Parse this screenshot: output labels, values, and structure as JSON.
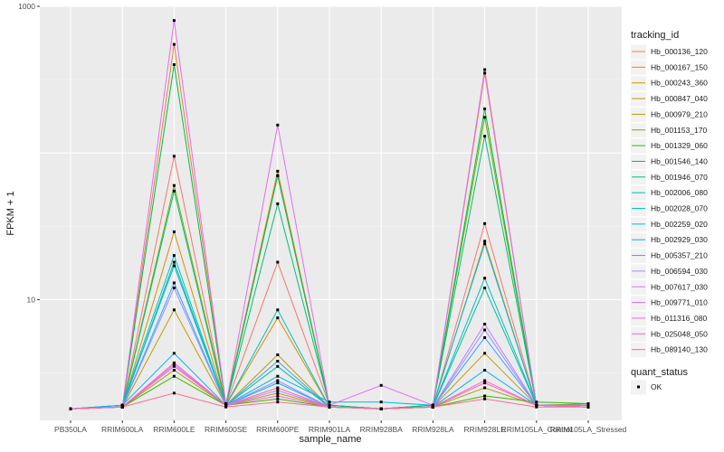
{
  "chart_data": {
    "type": "line",
    "xlabel": "sample_name",
    "ylabel": "FPKM + 1",
    "y_scale": "log10",
    "ylim": [
      1.5,
      1000
    ],
    "y_ticks": [
      10,
      1000
    ],
    "y_tick_labels": [
      "10",
      "1000"
    ],
    "grid": true,
    "legend_position": "right",
    "categories": [
      "PB350LA",
      "RRIM600LA",
      "RRIM600LE",
      "RRIM600SE",
      "RRIM600PE",
      "RRIM901LA",
      "RRIM928BA",
      "RRIM928LA",
      "RRIM928LE",
      "RRIM105LA_Control",
      "RRIM105LA_Stressed"
    ],
    "color_legend_title": "tracking_id",
    "shape_legend": {
      "title": "quant_status",
      "entries": [
        "OK"
      ]
    },
    "series": [
      {
        "name": "Hb_000136_120",
        "color": "#F8766D",
        "values": [
          1.8,
          1.85,
          95,
          1.9,
          18,
          1.9,
          1.8,
          1.85,
          33,
          1.9,
          1.9
        ]
      },
      {
        "name": "Hb_000167_150",
        "color": "#EA8331",
        "values": [
          1.8,
          1.85,
          550,
          1.95,
          75,
          1.9,
          1.8,
          1.9,
          350,
          1.9,
          1.9
        ]
      },
      {
        "name": "Hb_000243_360",
        "color": "#D89000",
        "values": [
          1.8,
          1.85,
          29,
          1.9,
          7.5,
          1.85,
          1.8,
          1.85,
          25,
          1.9,
          1.9
        ]
      },
      {
        "name": "Hb_000847_040",
        "color": "#C09B00",
        "values": [
          1.8,
          1.85,
          8.5,
          1.9,
          4.2,
          1.85,
          1.8,
          1.85,
          4.3,
          1.9,
          1.85
        ]
      },
      {
        "name": "Hb_000979_210",
        "color": "#A3A500",
        "values": [
          1.8,
          1.85,
          3.3,
          1.9,
          2.3,
          1.85,
          1.8,
          1.85,
          2.5,
          1.9,
          1.85
        ]
      },
      {
        "name": "Hb_001153_170",
        "color": "#7CAE00",
        "values": [
          1.8,
          1.85,
          60,
          1.95,
          70,
          1.9,
          1.8,
          1.9,
          175,
          1.9,
          1.95
        ]
      },
      {
        "name": "Hb_001329_060",
        "color": "#39B600",
        "values": [
          1.8,
          1.85,
          3.0,
          1.9,
          2.1,
          1.85,
          1.8,
          1.85,
          2.2,
          2.0,
          1.95
        ]
      },
      {
        "name": "Hb_001546_140",
        "color": "#00BB4E",
        "values": [
          1.8,
          1.85,
          400,
          1.9,
          70,
          1.9,
          1.8,
          1.9,
          200,
          1.9,
          1.9
        ]
      },
      {
        "name": "Hb_001946_070",
        "color": "#00BF7D",
        "values": [
          1.8,
          1.85,
          55,
          1.9,
          45,
          1.9,
          1.8,
          1.9,
          130,
          1.9,
          1.9
        ]
      },
      {
        "name": "Hb_002006_080",
        "color": "#00C1A3",
        "values": [
          1.8,
          1.85,
          18,
          1.9,
          3.5,
          1.85,
          1.8,
          1.85,
          12,
          1.9,
          1.85
        ]
      },
      {
        "name": "Hb_002028_070",
        "color": "#00BFC4",
        "values": [
          1.8,
          1.9,
          20,
          1.9,
          8.5,
          1.85,
          1.8,
          1.85,
          14,
          1.9,
          1.85
        ]
      },
      {
        "name": "Hb_002259_020",
        "color": "#00BAE0",
        "values": [
          1.8,
          1.9,
          17,
          1.9,
          3.0,
          2.0,
          2.0,
          1.9,
          24,
          1.9,
          1.9
        ]
      },
      {
        "name": "Hb_002929_030",
        "color": "#00B0F6",
        "values": [
          1.8,
          1.9,
          4.3,
          1.9,
          2.7,
          1.85,
          1.8,
          1.85,
          3.3,
          1.9,
          1.85
        ]
      },
      {
        "name": "Hb_005357_210",
        "color": "#35A2FF",
        "values": [
          1.8,
          1.85,
          13,
          1.9,
          3.8,
          1.85,
          1.8,
          1.85,
          5.5,
          1.9,
          1.85
        ]
      },
      {
        "name": "Hb_006594_030",
        "color": "#9590FF",
        "values": [
          1.8,
          1.85,
          12,
          1.9,
          2.8,
          1.85,
          1.8,
          1.85,
          6.2,
          1.9,
          1.85
        ]
      },
      {
        "name": "Hb_007617_030",
        "color": "#C77CFF",
        "values": [
          1.8,
          1.85,
          3.6,
          1.9,
          2.4,
          1.85,
          1.8,
          1.85,
          6.8,
          1.9,
          1.85
        ]
      },
      {
        "name": "Hb_009771_010",
        "color": "#E76BF3",
        "values": [
          1.8,
          1.85,
          800,
          1.9,
          155,
          1.9,
          2.6,
          1.9,
          370,
          1.9,
          1.9
        ]
      },
      {
        "name": "Hb_011316_080",
        "color": "#FA62DB",
        "values": [
          1.8,
          1.85,
          3.5,
          1.9,
          2.2,
          1.85,
          1.8,
          1.85,
          2.8,
          1.9,
          1.85
        ]
      },
      {
        "name": "Hb_025048_050",
        "color": "#FF62BC",
        "values": [
          1.8,
          1.85,
          3.7,
          1.9,
          2.5,
          1.85,
          1.8,
          1.85,
          2.7,
          1.9,
          1.85
        ]
      },
      {
        "name": "Hb_089140_130",
        "color": "#FF6C91",
        "values": [
          1.8,
          1.85,
          2.3,
          1.85,
          2.0,
          1.85,
          1.8,
          1.85,
          2.1,
          1.85,
          1.85
        ]
      }
    ]
  }
}
